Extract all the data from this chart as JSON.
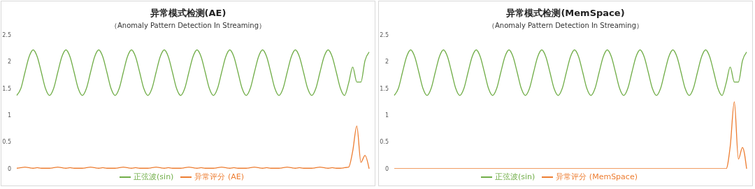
{
  "chart_data": [
    {
      "type": "line",
      "title": "异常模式检测(AE)",
      "subtitle": "（Anomaly Pattern Detection In Streaming）",
      "categories": [
        null,
        null,
        null,
        null,
        null,
        null,
        null,
        null,
        null,
        null,
        null,
        null,
        null,
        null,
        null,
        null,
        null,
        null,
        null,
        null,
        null,
        null,
        null,
        null,
        null,
        null,
        null,
        null,
        null,
        null,
        null,
        null,
        null,
        null,
        null,
        null,
        null,
        null,
        null,
        null,
        null,
        null,
        null,
        null,
        null,
        null,
        null,
        null,
        null,
        null,
        null,
        null,
        null,
        null,
        null,
        null,
        null,
        null,
        null,
        null,
        null,
        null,
        null,
        null,
        null,
        null,
        null,
        null,
        null,
        null,
        null,
        null,
        null,
        null,
        null,
        null,
        null,
        null,
        null,
        null,
        null,
        null,
        null,
        null,
        null,
        null,
        null
      ],
      "series": [
        {
          "name": "正弦波(sin)",
          "color": "#70ad47",
          "values": [
            1.37,
            1.5,
            1.8,
            2.09,
            2.22,
            2.09,
            1.8,
            1.5,
            1.37,
            1.5,
            1.8,
            2.09,
            2.22,
            2.09,
            1.8,
            1.5,
            1.37,
            1.5,
            1.8,
            2.09,
            2.22,
            2.09,
            1.8,
            1.5,
            1.37,
            1.5,
            1.8,
            2.09,
            2.22,
            2.09,
            1.8,
            1.5,
            1.37,
            1.5,
            1.8,
            2.09,
            2.22,
            2.09,
            1.8,
            1.5,
            1.37,
            1.5,
            1.8,
            2.09,
            2.22,
            2.09,
            1.8,
            1.5,
            1.37,
            1.5,
            1.8,
            2.09,
            2.22,
            2.09,
            1.8,
            1.5,
            1.37,
            1.5,
            1.8,
            2.09,
            2.22,
            2.09,
            1.8,
            1.5,
            1.37,
            1.5,
            1.8,
            2.09,
            2.22,
            2.09,
            1.8,
            1.5,
            1.37,
            1.5,
            1.8,
            2.09,
            2.22,
            2.09,
            1.8,
            1.5,
            1.37,
            1.6,
            1.9,
            1.62,
            1.62,
            2.02,
            2.18
          ]
        },
        {
          "name": "异常评分 (AE)",
          "color": "#ed7d31",
          "values": [
            0.01,
            0.02,
            0.03,
            0.02,
            0.01,
            0.02,
            0.01,
            0.01,
            0.01,
            0.02,
            0.03,
            0.02,
            0.01,
            0.02,
            0.01,
            0.01,
            0.01,
            0.02,
            0.03,
            0.02,
            0.01,
            0.02,
            0.01,
            0.01,
            0.01,
            0.02,
            0.03,
            0.02,
            0.01,
            0.02,
            0.01,
            0.01,
            0.01,
            0.02,
            0.03,
            0.02,
            0.01,
            0.02,
            0.01,
            0.01,
            0.01,
            0.02,
            0.03,
            0.02,
            0.01,
            0.02,
            0.01,
            0.01,
            0.01,
            0.02,
            0.03,
            0.02,
            0.01,
            0.02,
            0.01,
            0.01,
            0.01,
            0.02,
            0.03,
            0.02,
            0.01,
            0.02,
            0.01,
            0.01,
            0.01,
            0.02,
            0.03,
            0.02,
            0.01,
            0.02,
            0.01,
            0.01,
            0.01,
            0.02,
            0.03,
            0.02,
            0.01,
            0.02,
            0.01,
            0.01,
            0.02,
            0.03,
            0.33,
            0.8,
            0.12,
            0.25,
            0
          ]
        }
      ],
      "ylim": [
        0,
        2.5
      ],
      "yticks": [
        0,
        0.5,
        1,
        1.5,
        2,
        2.5
      ],
      "tick_labels": "y",
      "legend": "bottom"
    },
    {
      "type": "line",
      "title": "异常模式检测(MemSpace)",
      "subtitle": "（Anomaly Pattern Detection In Streaming）",
      "categories": [
        null,
        null,
        null,
        null,
        null,
        null,
        null,
        null,
        null,
        null,
        null,
        null,
        null,
        null,
        null,
        null,
        null,
        null,
        null,
        null,
        null,
        null,
        null,
        null,
        null,
        null,
        null,
        null,
        null,
        null,
        null,
        null,
        null,
        null,
        null,
        null,
        null,
        null,
        null,
        null,
        null,
        null,
        null,
        null,
        null,
        null,
        null,
        null,
        null,
        null,
        null,
        null,
        null,
        null,
        null,
        null,
        null,
        null,
        null,
        null,
        null,
        null,
        null,
        null,
        null,
        null,
        null,
        null,
        null,
        null,
        null,
        null,
        null,
        null,
        null,
        null,
        null,
        null,
        null,
        null,
        null,
        null,
        null,
        null,
        null,
        null,
        null
      ],
      "series": [
        {
          "name": "正弦波(sin)",
          "color": "#70ad47",
          "values": [
            1.37,
            1.5,
            1.8,
            2.09,
            2.22,
            2.09,
            1.8,
            1.5,
            1.37,
            1.5,
            1.8,
            2.09,
            2.22,
            2.09,
            1.8,
            1.5,
            1.37,
            1.5,
            1.8,
            2.09,
            2.22,
            2.09,
            1.8,
            1.5,
            1.37,
            1.5,
            1.8,
            2.09,
            2.22,
            2.09,
            1.8,
            1.5,
            1.37,
            1.5,
            1.8,
            2.09,
            2.22,
            2.09,
            1.8,
            1.5,
            1.37,
            1.5,
            1.8,
            2.09,
            2.22,
            2.09,
            1.8,
            1.5,
            1.37,
            1.5,
            1.8,
            2.09,
            2.22,
            2.09,
            1.8,
            1.5,
            1.37,
            1.5,
            1.8,
            2.09,
            2.22,
            2.09,
            1.8,
            1.5,
            1.37,
            1.5,
            1.8,
            2.09,
            2.22,
            2.09,
            1.8,
            1.5,
            1.37,
            1.5,
            1.8,
            2.09,
            2.22,
            2.09,
            1.8,
            1.5,
            1.37,
            1.6,
            1.9,
            1.62,
            1.62,
            2.02,
            2.18
          ]
        },
        {
          "name": "异常评分 (MemSpace)",
          "color": "#ed7d31",
          "values": [
            0,
            0,
            0,
            0,
            0,
            0,
            0,
            0,
            0,
            0,
            0,
            0,
            0,
            0,
            0,
            0,
            0,
            0,
            0,
            0,
            0,
            0,
            0,
            0,
            0,
            0,
            0,
            0,
            0,
            0,
            0,
            0,
            0,
            0,
            0,
            0,
            0,
            0,
            0,
            0,
            0,
            0,
            0,
            0,
            0,
            0,
            0,
            0,
            0,
            0,
            0,
            0,
            0,
            0,
            0,
            0,
            0,
            0,
            0,
            0,
            0,
            0,
            0,
            0,
            0,
            0,
            0,
            0,
            0,
            0,
            0,
            0,
            0,
            0,
            0,
            0,
            0,
            0,
            0,
            0,
            0,
            0,
            0.42,
            1.25,
            0.18,
            0.4,
            0
          ]
        }
      ],
      "ylim": [
        0,
        2.5
      ],
      "yticks": [
        0,
        0.5,
        1,
        1.5,
        2,
        2.5
      ],
      "tick_labels": "y",
      "legend": "bottom"
    }
  ]
}
